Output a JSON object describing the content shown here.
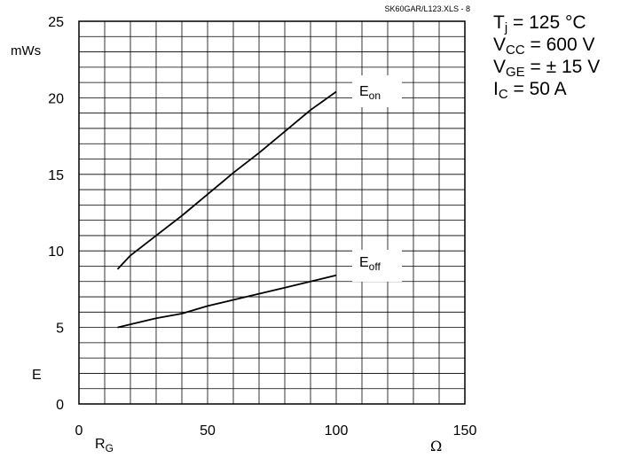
{
  "chart_data": {
    "type": "line",
    "source_note": "SK60GAR/L123.XLS - 8",
    "ylabel": "E",
    "yunit": "mWs",
    "xlabel_main": "R",
    "xlabel_sub": "G",
    "xunit": "Ω",
    "xlim": [
      0,
      150
    ],
    "ylim": [
      0,
      25
    ],
    "x_ticks": [
      0,
      50,
      100,
      150
    ],
    "y_ticks": [
      0,
      5,
      10,
      15,
      20,
      25
    ],
    "grid": true,
    "series": [
      {
        "name_main": "E",
        "name_sub": "on",
        "x": [
          15,
          20,
          30,
          40,
          50,
          60,
          70,
          80,
          90,
          100
        ],
        "y": [
          8.8,
          9.7,
          11.0,
          12.3,
          13.7,
          15.1,
          16.4,
          17.8,
          19.2,
          20.4
        ]
      },
      {
        "name_main": "E",
        "name_sub": "off",
        "x": [
          15,
          20,
          30,
          40,
          50,
          60,
          70,
          80,
          90,
          100
        ],
        "y": [
          5.0,
          5.2,
          5.6,
          5.9,
          6.4,
          6.8,
          7.2,
          7.6,
          8.0,
          8.4
        ]
      }
    ]
  },
  "conditions": [
    {
      "sym": "T",
      "sub": "j",
      "value": " = 125 °C"
    },
    {
      "sym": "V",
      "sub": "CC",
      "value": " = 600 V"
    },
    {
      "sym": "V",
      "sub": "GE",
      "value": " = ± 15 V"
    },
    {
      "sym": "I",
      "sub": "C",
      "value": " = 50 A"
    }
  ]
}
